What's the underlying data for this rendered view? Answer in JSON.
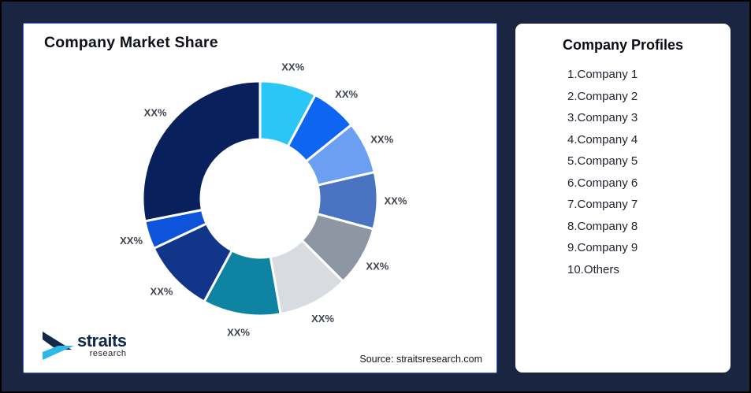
{
  "page": {
    "background_color": "#1A2542",
    "outer_border_color": "#000000"
  },
  "chart_card": {
    "title": "Company Market Share",
    "source": "Source: straitsresearch.com",
    "border_color": "#3F5ECF"
  },
  "logo": {
    "name": "straits",
    "sub": "research",
    "navy_color": "#13294A",
    "cyan_color": "#2CB9E8"
  },
  "profiles_card": {
    "title": "Company Profiles",
    "items": [
      "1.Company 1",
      "2.Company 2",
      "3.Company 3",
      "4.Company 4",
      "5.Company 5",
      "6.Company 6",
      "7.Company 7",
      "8.Company 8",
      "9.Company 9",
      "10.Others"
    ]
  },
  "chart_data": {
    "type": "pie",
    "subtype": "donut",
    "title": "Company Market Share",
    "start_angle_deg": 0,
    "clockwise": true,
    "inner_radius_ratio": 0.5,
    "label_text_color": "#3D4350",
    "slice_gap_color": "#FFFFFF",
    "segments": [
      {
        "name": "Company 1",
        "display_label": "XX%",
        "percent_est": 7.8,
        "color": "#29C6F7"
      },
      {
        "name": "Company 2",
        "display_label": "XX%",
        "percent_est": 6.4,
        "color": "#0D65F2"
      },
      {
        "name": "Company 3",
        "display_label": "XX%",
        "percent_est": 7.2,
        "color": "#6B9FF2"
      },
      {
        "name": "Company 4",
        "display_label": "XX%",
        "percent_est": 7.8,
        "color": "#4A74C2"
      },
      {
        "name": "Company 5",
        "display_label": "XX%",
        "percent_est": 8.3,
        "color": "#8E96A3"
      },
      {
        "name": "Company 6",
        "display_label": "XX%",
        "percent_est": 9.7,
        "color": "#D8DBDF"
      },
      {
        "name": "Company 7",
        "display_label": "XX%",
        "percent_est": 10.7,
        "color": "#0F84A2"
      },
      {
        "name": "Company 8",
        "display_label": "XX%",
        "percent_est": 10.1,
        "color": "#113589"
      },
      {
        "name": "Company 9",
        "display_label": "XX%",
        "percent_est": 3.9,
        "color": "#0D54DB"
      },
      {
        "name": "Others",
        "display_label": "XX%",
        "percent_est": 28.1,
        "color": "#08215C"
      }
    ]
  }
}
